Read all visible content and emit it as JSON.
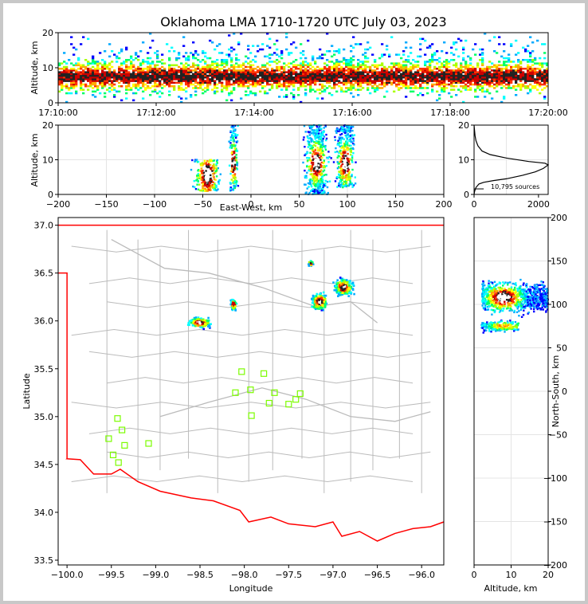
{
  "title": "Oklahoma LMA 1710-1720 UTC July 03, 2023",
  "colors": {
    "density_scale": [
      "#0000ff",
      "#00aaff",
      "#00ffff",
      "#00ff66",
      "#aaff00",
      "#ffff00",
      "#ffaa00",
      "#ff3300",
      "#cc0000",
      "#222222",
      "#ffffff"
    ],
    "state_border": "#ff0000",
    "county_lines": "#bbbbbb",
    "station_marker": "#7cfc00",
    "grid": "#dddddd"
  },
  "panels": {
    "time_height": {
      "ylabel": "Altitude, km",
      "y_ticks": [
        "0",
        "10",
        "20"
      ],
      "x_ticks": [
        "17:10:00",
        "17:12:00",
        "17:14:00",
        "17:16:00",
        "17:18:00",
        "17:20:00"
      ]
    },
    "ew_height": {
      "ylabel": "Altitude, km",
      "xlabel": "East-West, km",
      "y_ticks": [
        "0",
        "10",
        "20"
      ],
      "x_ticks": [
        "-200",
        "-150",
        "-100",
        "-50",
        "0",
        "50",
        "100",
        "150",
        "200"
      ]
    },
    "histogram": {
      "y_ticks": [
        "0",
        "10",
        "20"
      ],
      "x_ticks": [
        "0",
        "2000"
      ],
      "sources_label": "10,795 sources"
    },
    "plan": {
      "xlabel": "Longitude",
      "ylabel": "Latitude",
      "x_ticks": [
        "-100.0",
        "-99.5",
        "-99.0",
        "-98.5",
        "-98.0",
        "-97.5",
        "-97.0",
        "-96.5",
        "-96.0"
      ],
      "y_ticks": [
        "37.0",
        "36.5",
        "36.0",
        "35.5",
        "35.0",
        "34.5",
        "34.0",
        "33.5"
      ]
    },
    "ns_height": {
      "xlabel": "Altitude, km",
      "ylabel": "North-South, km",
      "x_ticks": [
        "0",
        "10",
        "20"
      ],
      "y_ticks": [
        "200",
        "150",
        "100",
        "50",
        "0",
        "-50",
        "-100",
        "-150",
        "-200"
      ]
    }
  },
  "chart_data": [
    {
      "type": "heatmap",
      "name": "time_height",
      "xlim": [
        "17:10:00",
        "17:20:00"
      ],
      "ylim": [
        0,
        20
      ],
      "ylabel": "Altitude, km",
      "description_values": {
        "core_altitude_km": [
          5,
          10
        ],
        "max_altitude_km": 20
      }
    },
    {
      "type": "heatmap",
      "name": "east_west_altitude",
      "xlim": [
        -200,
        200
      ],
      "ylim": [
        0,
        20
      ],
      "xlabel": "East-West, km",
      "ylabel": "Altitude, km",
      "clusters": [
        {
          "x_km": -45,
          "width_km": 25,
          "alt_range_km": [
            1,
            10
          ]
        },
        {
          "x_km": -18,
          "width_km": 8,
          "alt_range_km": [
            1,
            20
          ]
        },
        {
          "x_km": 68,
          "width_km": 22,
          "alt_range_km": [
            0,
            20
          ]
        },
        {
          "x_km": 98,
          "width_km": 18,
          "alt_range_km": [
            2,
            20
          ]
        }
      ]
    },
    {
      "type": "line",
      "name": "altitude_histogram",
      "xlim": [
        0,
        2300
      ],
      "ylim": [
        0,
        20
      ],
      "x": [
        0,
        20,
        60,
        150,
        300,
        600,
        1000,
        1500,
        1900,
        2150,
        2300,
        2200,
        1700,
        1000,
        500,
        250,
        120,
        60,
        30,
        10,
        0
      ],
      "y": [
        0,
        1,
        2,
        3,
        3.5,
        4,
        4.5,
        5.5,
        6.5,
        7.5,
        8.5,
        9,
        9.5,
        10.5,
        11.5,
        12.5,
        14,
        15.5,
        17,
        19,
        20
      ],
      "total_sources": 10795
    },
    {
      "type": "heatmap",
      "name": "plan_view",
      "xlim": [
        -100.1,
        -95.75
      ],
      "ylim": [
        33.45,
        37.08
      ],
      "xlabel": "Longitude",
      "ylabel": "Latitude",
      "clusters": [
        {
          "lon": -98.5,
          "lat": 35.98,
          "rx": 0.18,
          "ry": 0.08
        },
        {
          "lon": -98.12,
          "lat": 36.17,
          "rx": 0.05,
          "ry": 0.08
        },
        {
          "lon": -97.15,
          "lat": 36.2,
          "rx": 0.13,
          "ry": 0.13
        },
        {
          "lon": -96.88,
          "lat": 36.35,
          "rx": 0.15,
          "ry": 0.13
        },
        {
          "lon": -97.25,
          "lat": 36.6,
          "rx": 0.04,
          "ry": 0.04
        }
      ],
      "stations": [
        [
          -98.03,
          35.47
        ],
        [
          -97.78,
          35.45
        ],
        [
          -97.93,
          35.28
        ],
        [
          -98.1,
          35.25
        ],
        [
          -97.66,
          35.25
        ],
        [
          -97.37,
          35.24
        ],
        [
          -97.42,
          35.18
        ],
        [
          -97.72,
          35.14
        ],
        [
          -97.5,
          35.13
        ],
        [
          -97.92,
          35.01
        ],
        [
          -99.43,
          34.98
        ],
        [
          -99.38,
          34.86
        ],
        [
          -99.53,
          34.77
        ],
        [
          -99.35,
          34.7
        ],
        [
          -99.08,
          34.72
        ],
        [
          -99.48,
          34.6
        ],
        [
          -99.42,
          34.52
        ]
      ]
    },
    {
      "type": "heatmap",
      "name": "north_south_altitude",
      "xlim": [
        0,
        20
      ],
      "ylim": [
        -200,
        200
      ],
      "xlabel": "Altitude, km",
      "ylabel": "North-South, km",
      "clusters": [
        {
          "ns_km": 108,
          "alt_range_km": [
            2,
            20
          ]
        },
        {
          "ns_km": 75,
          "alt_range_km": [
            2,
            12
          ]
        }
      ]
    }
  ]
}
